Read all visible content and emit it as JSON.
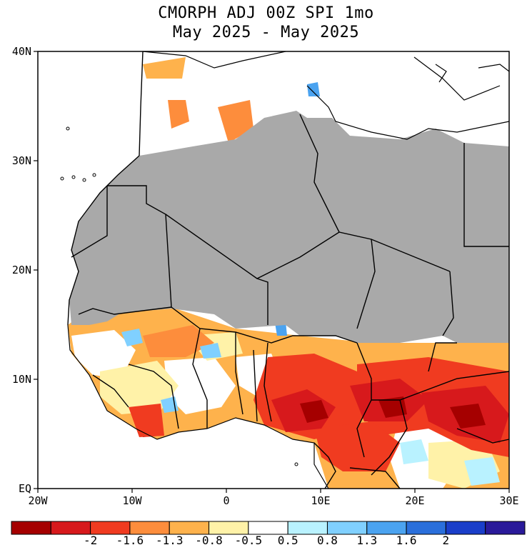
{
  "title": {
    "line1": "CMORPH ADJ 00Z SPI 1mo",
    "line2": "May 2025 - May 2025"
  },
  "axes": {
    "lat_labels": [
      "40N",
      "30N",
      "20N",
      "10N",
      "EQ"
    ],
    "lon_labels": [
      "20W",
      "10W",
      "0",
      "10E",
      "20E",
      "30E"
    ],
    "lat_range": [
      0,
      40
    ],
    "lon_range": [
      -20,
      30
    ]
  },
  "colorbar": {
    "tick_labels": [
      "-2",
      "-1.6",
      "-1.3",
      "-0.8",
      "-0.5",
      "0.5",
      "0.8",
      "1.3",
      "1.6",
      "2"
    ],
    "colors": [
      "#a50000",
      "#d7191c",
      "#f03b20",
      "#fd8d3c",
      "#feb24c",
      "#fff2a8",
      "#ffffff",
      "#b9f2ff",
      "#80d0ff",
      "#4ba3f0",
      "#2a6fdb",
      "#1a3ec9",
      "#2a1a9a"
    ]
  },
  "colors": {
    "masked": "#a9a9a9",
    "ocean": "#ffffff",
    "border": "#000000"
  }
}
